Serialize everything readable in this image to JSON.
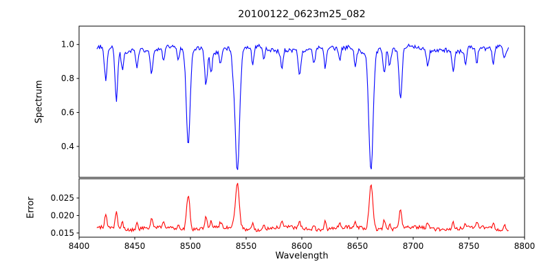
{
  "figure": {
    "background": "#ffffff",
    "axis_color": "#000000"
  },
  "chart_data": {
    "type": "line",
    "title": "20100122_0623m25_082",
    "xlabel": "Wavelength",
    "xlim": [
      8400,
      8800
    ],
    "x_ticks": [
      {
        "v": 8400,
        "label": "8400"
      },
      {
        "v": 8450,
        "label": "8450"
      },
      {
        "v": 8500,
        "label": "8500"
      },
      {
        "v": 8550,
        "label": "8550"
      },
      {
        "v": 8600,
        "label": "8600"
      },
      {
        "v": 8650,
        "label": "8650"
      },
      {
        "v": 8700,
        "label": "8700"
      },
      {
        "v": 8750,
        "label": "8750"
      },
      {
        "v": 8800,
        "label": "8800"
      }
    ],
    "x_start": 8416,
    "x_end": 8786,
    "x_step": 0.8,
    "seed": 20100122,
    "absorption_lines": [
      [
        8498.0,
        0.56,
        1.7
      ],
      [
        8542.1,
        0.72,
        2.0
      ],
      [
        8662.1,
        0.7,
        1.9
      ],
      [
        8424.0,
        0.2,
        1.2
      ],
      [
        8433.5,
        0.3,
        1.2
      ],
      [
        8439.0,
        0.12,
        1.0
      ],
      [
        8452.0,
        0.1,
        1.0
      ],
      [
        8465.0,
        0.13,
        1.1
      ],
      [
        8476.0,
        0.08,
        1.0
      ],
      [
        8489.0,
        0.07,
        1.0
      ],
      [
        8514.0,
        0.2,
        1.2
      ],
      [
        8518.5,
        0.12,
        1.0
      ],
      [
        8527.0,
        0.08,
        1.0
      ],
      [
        8538.0,
        0.07,
        0.9
      ],
      [
        8556.0,
        0.1,
        1.0
      ],
      [
        8566.0,
        0.07,
        1.0
      ],
      [
        8582.0,
        0.1,
        1.0
      ],
      [
        8598.0,
        0.13,
        1.1
      ],
      [
        8611.0,
        0.09,
        1.0
      ],
      [
        8621.0,
        0.12,
        1.0
      ],
      [
        8634.0,
        0.07,
        1.0
      ],
      [
        8648.0,
        0.1,
        1.0
      ],
      [
        8674.0,
        0.15,
        1.1
      ],
      [
        8679.0,
        0.1,
        1.0
      ],
      [
        8688.6,
        0.3,
        1.3
      ],
      [
        8713.0,
        0.1,
        1.0
      ],
      [
        8736.0,
        0.12,
        1.0
      ],
      [
        8747.0,
        0.08,
        1.0
      ],
      [
        8757.0,
        0.1,
        1.0
      ],
      [
        8772.0,
        0.09,
        1.0
      ],
      [
        8782.0,
        0.07,
        1.0
      ]
    ],
    "panels": [
      {
        "name": "spectrum",
        "ylabel": "Spectrum",
        "color": "#0000ff",
        "ylim": [
          0.218,
          1.108
        ],
        "y_ticks": [
          {
            "v": 0.4,
            "label": "0.4"
          },
          {
            "v": 0.6,
            "label": "0.6"
          },
          {
            "v": 0.8,
            "label": "0.8"
          },
          {
            "v": 1.0,
            "label": "1.0"
          }
        ],
        "continuum": 0.972,
        "noise": 0.013
      },
      {
        "name": "error",
        "ylabel": "Error",
        "color": "#ff0000",
        "ylim": [
          0.0138,
          0.0305
        ],
        "y_ticks": [
          {
            "v": 0.015,
            "label": "0.015"
          },
          {
            "v": 0.02,
            "label": "0.020"
          },
          {
            "v": 0.025,
            "label": "0.025"
          }
        ],
        "base": 0.0163,
        "noise": 0.0005,
        "line_scale": 0.018
      }
    ]
  }
}
